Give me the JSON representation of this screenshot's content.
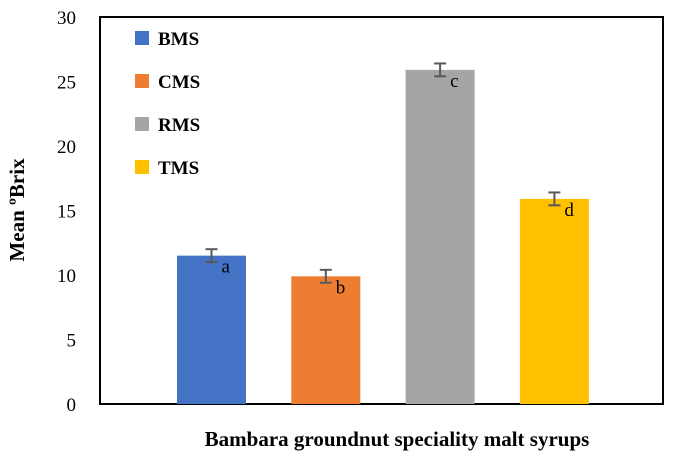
{
  "chart_data": {
    "type": "bar",
    "title": "",
    "xlabel": "Bambara groundnut speciality malt syrups",
    "ylabel": "Mean ºBrix",
    "ylim": [
      0,
      30
    ],
    "yticks": [
      0,
      5,
      10,
      15,
      20,
      25,
      30
    ],
    "grid": false,
    "legend_position": "top-left",
    "categories": [
      "BMS",
      "CMS",
      "RMS",
      "TMS"
    ],
    "values": [
      11.5,
      9.9,
      25.9,
      15.9
    ],
    "errors": [
      0.5,
      0.5,
      0.5,
      0.5
    ],
    "significance_letters": [
      "a",
      "b",
      "c",
      "d"
    ],
    "colors": [
      "#4472C4",
      "#ED7D31",
      "#A5A5A5",
      "#FFC000"
    ],
    "error_bar_color": "#595959"
  }
}
